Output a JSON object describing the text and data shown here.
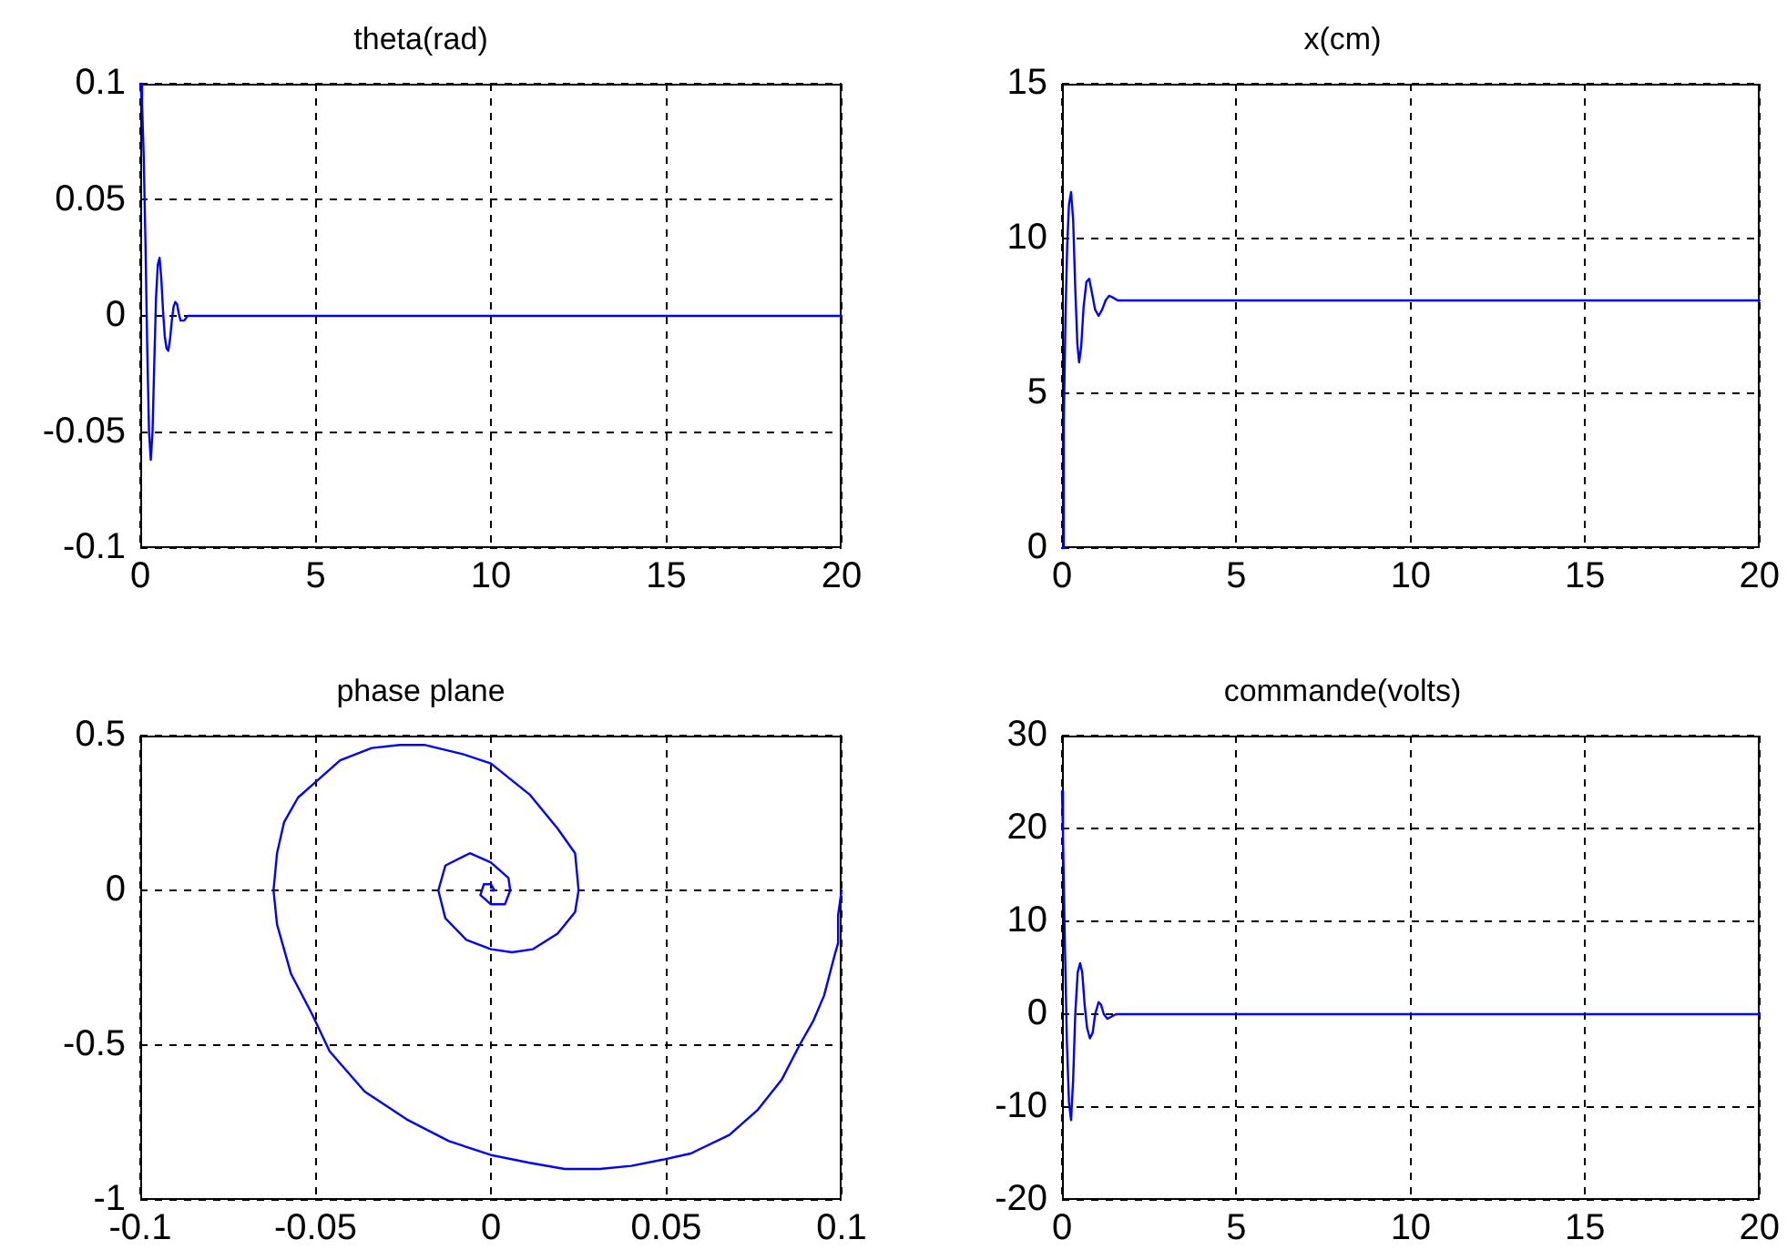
{
  "chart_data": [
    {
      "type": "line",
      "title": "theta(rad)",
      "x": [
        0,
        0.05,
        0.1,
        0.15,
        0.2,
        0.25,
        0.3,
        0.35,
        0.4,
        0.45,
        0.5,
        0.55,
        0.6,
        0.65,
        0.7,
        0.75,
        0.8,
        0.85,
        0.9,
        0.95,
        1.0,
        1.05,
        1.1,
        1.15,
        1.25,
        1.35,
        1.5,
        20
      ],
      "values": [
        0.1,
        0.092,
        0.068,
        0.03,
        -0.015,
        -0.05,
        -0.062,
        -0.05,
        -0.02,
        0.008,
        0.022,
        0.025,
        0.016,
        0.002,
        -0.009,
        -0.014,
        -0.015,
        -0.01,
        -0.002,
        0.004,
        0.006,
        0.005,
        0.001,
        -0.002,
        -0.002,
        0,
        0,
        0
      ],
      "color": "#0000ff",
      "xlim": [
        0,
        20
      ],
      "xticks": [
        0,
        5,
        10,
        15,
        20
      ],
      "ylim": [
        -0.1,
        0.1
      ],
      "yticks": [
        -0.1,
        -0.05,
        0,
        0.05,
        0.1
      ],
      "grid": true
    },
    {
      "type": "line",
      "title": "x(cm)",
      "x": [
        0,
        0.05,
        0.1,
        0.15,
        0.2,
        0.26,
        0.32,
        0.38,
        0.44,
        0.49,
        0.55,
        0.62,
        0.7,
        0.78,
        0.85,
        0.95,
        1.05,
        1.15,
        1.25,
        1.35,
        1.45,
        1.6,
        20
      ],
      "values": [
        0,
        4,
        7.5,
        9.8,
        11.1,
        11.5,
        10.6,
        8.4,
        6.6,
        6.0,
        6.5,
        7.8,
        8.6,
        8.7,
        8.3,
        7.7,
        7.5,
        7.7,
        8.0,
        8.15,
        8.1,
        8,
        8
      ],
      "color": "#0000ff",
      "xlim": [
        0,
        20
      ],
      "xticks": [
        0,
        5,
        10,
        15,
        20
      ],
      "ylim": [
        0,
        15
      ],
      "yticks": [
        0,
        5,
        10,
        15
      ],
      "grid": true
    },
    {
      "type": "line",
      "title": "phase plane",
      "x": [
        0.1,
        0.099,
        0.099,
        0.098,
        0.095,
        0.092,
        0.088,
        0.083,
        0.076,
        0.068,
        0.057,
        0.049,
        0.04,
        0.031,
        0.021,
        0.011,
        0,
        -0.012,
        -0.024,
        -0.036,
        -0.046,
        -0.051,
        -0.057,
        -0.059,
        -0.061,
        -0.062,
        -0.061,
        -0.059,
        -0.055,
        -0.051,
        -0.043,
        -0.034,
        -0.026,
        -0.019,
        -0.008,
        0,
        0.011,
        0.019,
        0.024,
        0.025,
        0.024,
        0.019,
        0.012,
        0.006,
        0,
        -0.007,
        -0.013,
        -0.015,
        -0.013,
        -0.006,
        0,
        0.005,
        0.0055,
        0.004,
        0,
        -0.003,
        -0.002,
        0,
        0.001,
        0
      ],
      "values": [
        0,
        -0.08,
        -0.17,
        -0.21,
        -0.34,
        -0.42,
        -0.5,
        -0.61,
        -0.71,
        -0.79,
        -0.85,
        -0.87,
        -0.89,
        -0.9,
        -0.9,
        -0.88,
        -0.855,
        -0.81,
        -0.74,
        -0.65,
        -0.52,
        -0.4,
        -0.27,
        -0.19,
        -0.11,
        0,
        0.12,
        0.22,
        0.3,
        0.34,
        0.42,
        0.46,
        0.47,
        0.47,
        0.44,
        0.41,
        0.31,
        0.2,
        0.12,
        0,
        -0.07,
        -0.14,
        -0.19,
        -0.2,
        -0.19,
        -0.16,
        -0.09,
        0,
        0.08,
        0.12,
        0.09,
        0.04,
        0,
        -0.045,
        -0.045,
        -0.015,
        0.02,
        0.02,
        0,
        0
      ],
      "color": "#0000ff",
      "xlim": [
        -0.1,
        0.1
      ],
      "xticks": [
        -0.1,
        -0.05,
        0,
        0.05,
        0.1
      ],
      "ylim": [
        -1,
        0.5
      ],
      "yticks": [
        -1,
        -0.5,
        0,
        0.5
      ],
      "grid": true
    },
    {
      "type": "line",
      "title": "commande(volts)",
      "x": [
        0,
        0.03,
        0.08,
        0.14,
        0.2,
        0.26,
        0.32,
        0.38,
        0.45,
        0.52,
        0.58,
        0.65,
        0.72,
        0.8,
        0.88,
        0.95,
        1.05,
        1.12,
        1.2,
        1.3,
        1.4,
        1.55,
        20
      ],
      "values": [
        24,
        19,
        8,
        -3,
        -9.5,
        -11.4,
        -7,
        0,
        4.5,
        5.5,
        4.5,
        1,
        -1.5,
        -2.6,
        -2,
        0,
        1.3,
        1,
        0,
        -0.5,
        -0.3,
        0,
        0
      ],
      "color": "#0000ff",
      "xlim": [
        0,
        20
      ],
      "xticks": [
        0,
        5,
        10,
        15,
        20
      ],
      "ylim": [
        -20,
        30
      ],
      "yticks": [
        -20,
        -10,
        0,
        10,
        20,
        30
      ],
      "grid": true
    }
  ]
}
